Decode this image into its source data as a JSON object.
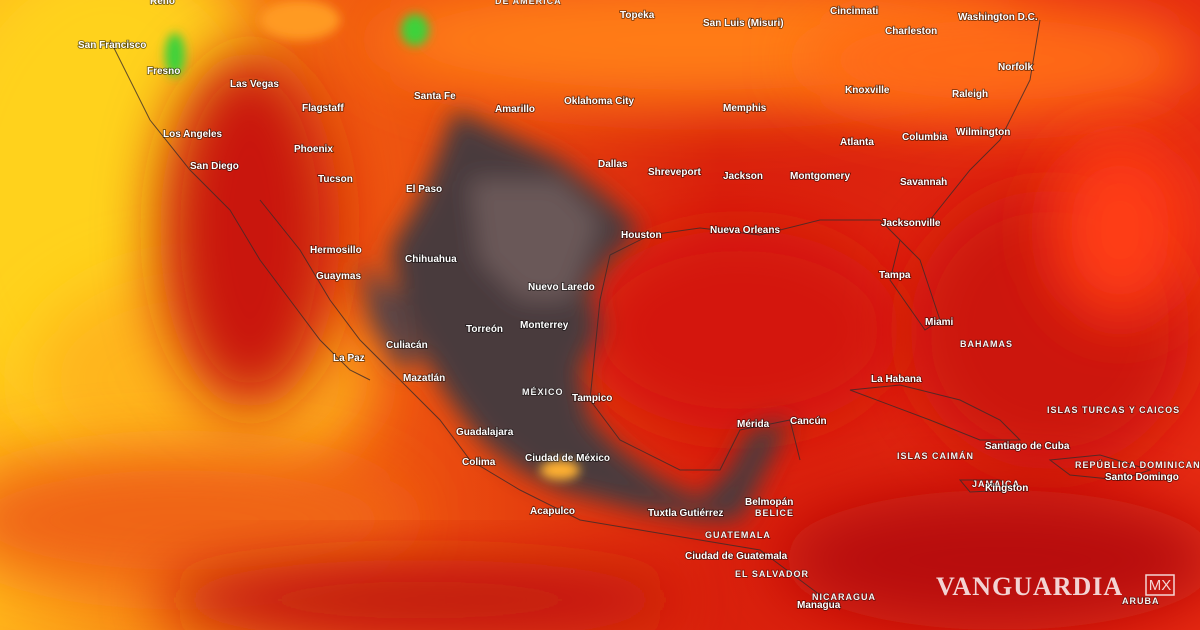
{
  "labels": [
    "Reno",
    "DE AMERICA",
    "San Francisco",
    "Fresno",
    "Las Vegas",
    "Flagstaff",
    "Santa Fe",
    "Amarillo",
    "Oklahoma City",
    "Topeka",
    "San Luis (Misuri)",
    "Cincinnati",
    "Charleston",
    "Washington D.C.",
    "Norfolk",
    "Knoxville",
    "Raleigh",
    "Memphis",
    "Atlanta",
    "Columbia",
    "Wilmington",
    "Los Angeles",
    "San Diego",
    "Phoenix",
    "Tucson",
    "El Paso",
    "Dallas",
    "Shreveport",
    "Jackson",
    "Montgomery",
    "Savannah",
    "Jacksonville",
    "Houston",
    "Nueva Orleans",
    "Tampa",
    "Miami",
    "BAHAMAS",
    "Hermosillo",
    "Guaymas",
    "Chihuahua",
    "Nuevo Laredo",
    "Torreón",
    "Monterrey",
    "Culiacán",
    "La Paz",
    "Mazatlán",
    "MÉXICO",
    "Tampico",
    "La Habana",
    "ISLAS TURCAS Y CAICOS",
    "Mérida",
    "Cancún",
    "Guadalajara",
    "Colima",
    "Ciudad de México",
    "Santiago de Cuba",
    "ISLAS CAIMÁN",
    "REPÚBLICA DOMINICANA",
    "Santo Domingo",
    "JAMAICA",
    "Kingston",
    "Belmopán",
    "BELICE",
    "Acapulco",
    "Tuxtla Gutiérrez",
    "GUATEMALA",
    "Ciudad de Guatemala",
    "EL SALVADOR",
    "NICARAGUA",
    "Managua",
    "ARUBA"
  ],
  "watermark": {
    "brand": "VANGUARDIA",
    "country": "MX"
  }
}
